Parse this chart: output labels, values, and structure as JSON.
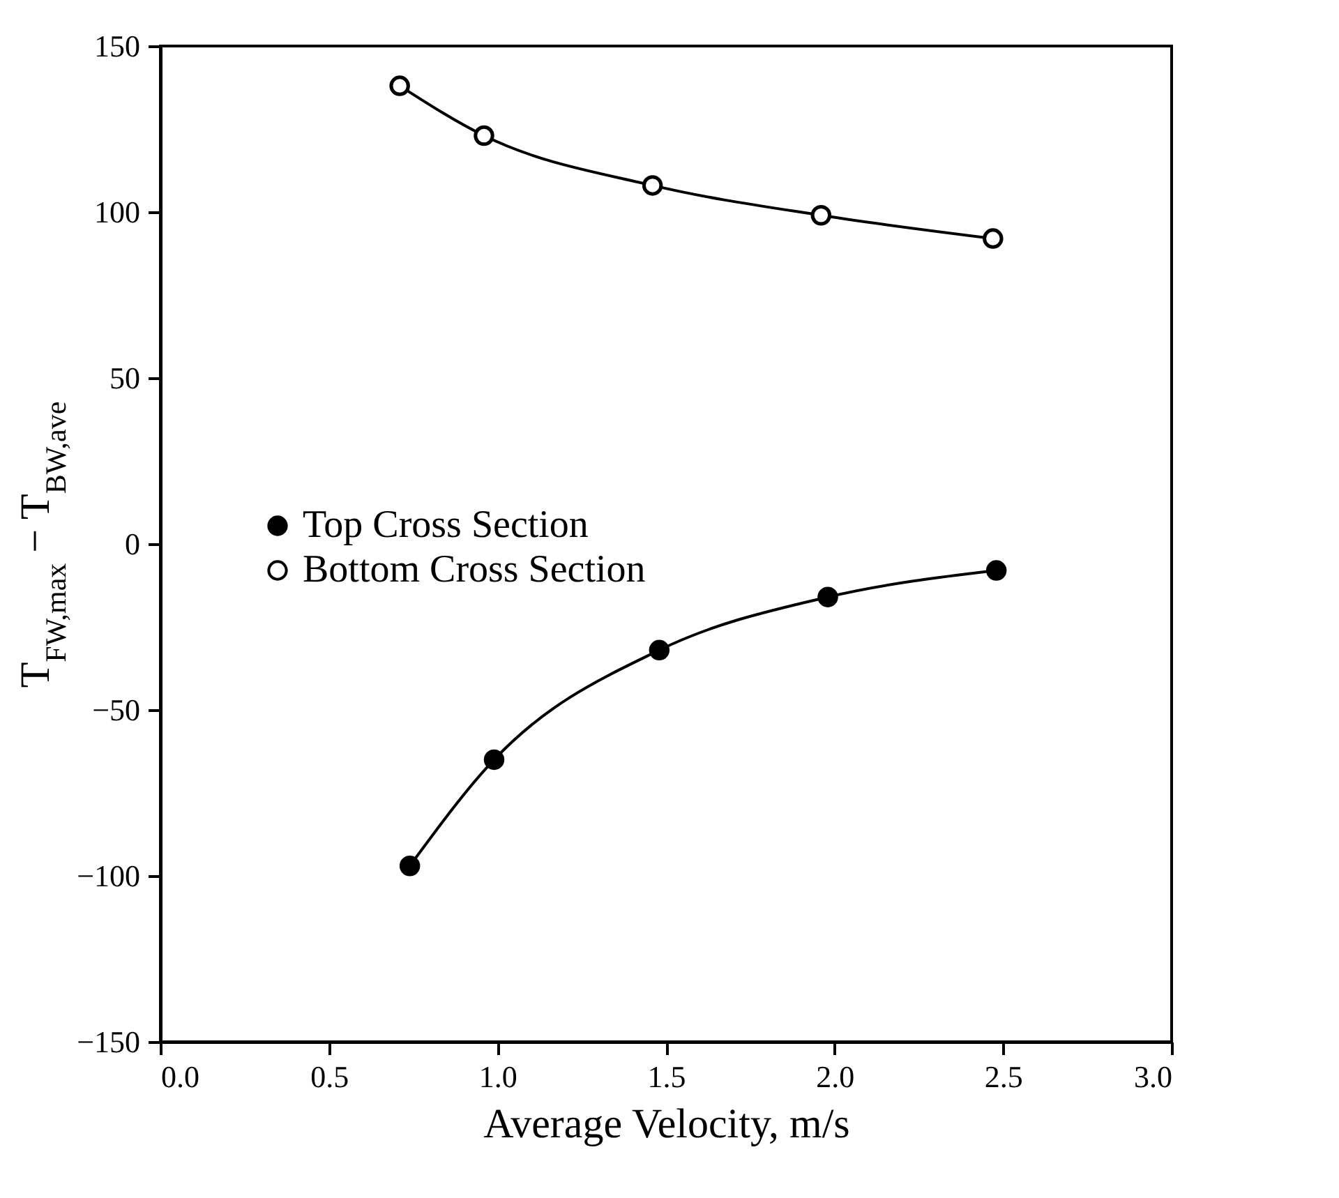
{
  "chart_data": {
    "type": "line",
    "xlabel": "Average Velocity, m/s",
    "ylabel": "T$_{FW,max}$ − T$_{BW,ave}$",
    "xlim": [
      0,
      3
    ],
    "xticks": [
      {
        "value": 0,
        "label": "0.0"
      },
      0.5,
      {
        "value": 1,
        "label": "1.0"
      },
      1.5,
      {
        "value": 2,
        "label": "2.0"
      },
      2.5,
      {
        "value": 3,
        "label": "3.0"
      }
    ],
    "ylim": [
      -150,
      150
    ],
    "yticks": [
      -150,
      -100,
      -50,
      0,
      50,
      100,
      150
    ],
    "grid": false,
    "legend": "left",
    "marker": "circle",
    "line_style": "solid",
    "series": [
      {
        "name": "Top Cross Section",
        "color": "#000000",
        "x": [
          0.74,
          0.99,
          1.48,
          1.98,
          2.48
        ],
        "values": [
          -97,
          -65,
          -32,
          -16,
          -8
        ]
      },
      {
        "name": "Bottom Cross Section",
        "color": "#000000",
        "x": [
          0.71,
          0.96,
          1.46,
          1.96,
          2.47
        ],
        "values": [
          138,
          123,
          108,
          99,
          92
        ]
      }
    ]
  }
}
